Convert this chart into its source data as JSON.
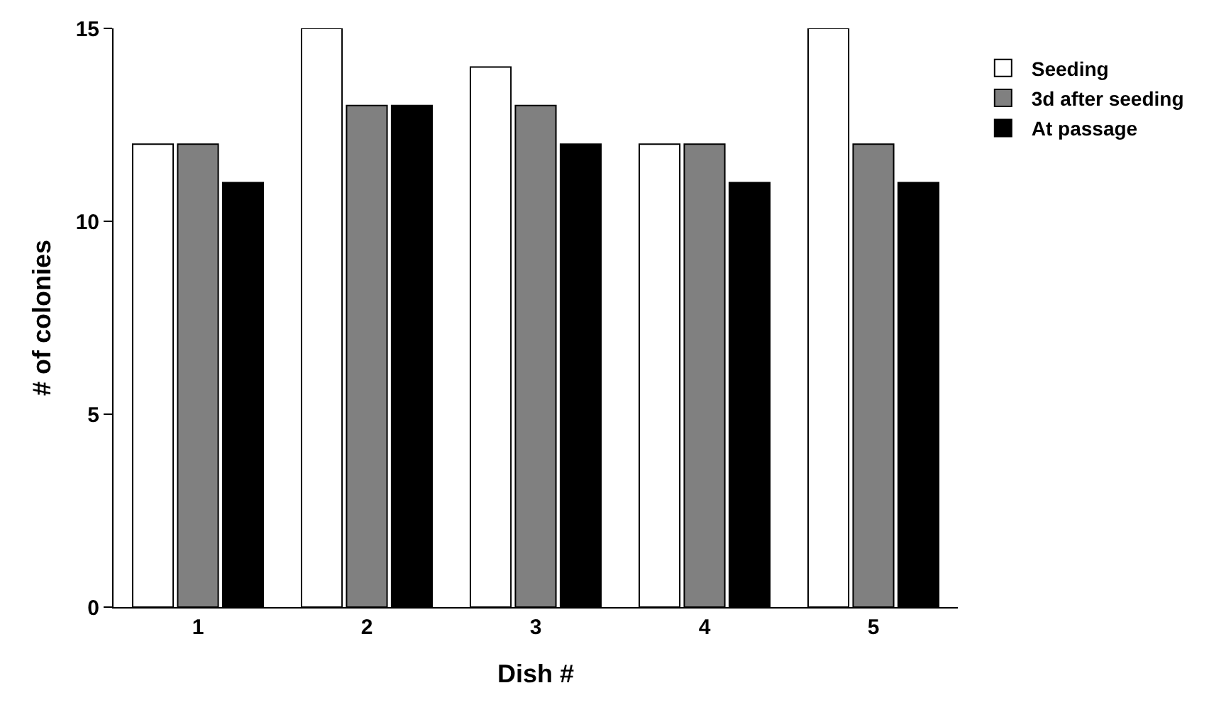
{
  "chart_data": {
    "type": "bar",
    "xlabel": "Dish #",
    "ylabel": "# of colonies",
    "categories": [
      "1",
      "2",
      "3",
      "4",
      "5"
    ],
    "series": [
      {
        "name": "Seeding",
        "color": "#ffffff",
        "values": [
          12,
          15,
          14,
          12,
          15
        ]
      },
      {
        "name": "3d after seeding",
        "color": "#808080",
        "values": [
          12,
          13,
          13,
          12,
          12
        ]
      },
      {
        "name": "At passage",
        "color": "#000000",
        "values": [
          11,
          13,
          12,
          11,
          11
        ]
      }
    ],
    "ylim": [
      0,
      15
    ],
    "yticks": [
      0,
      5,
      10,
      15
    ],
    "grid": false,
    "legend": "top right"
  }
}
